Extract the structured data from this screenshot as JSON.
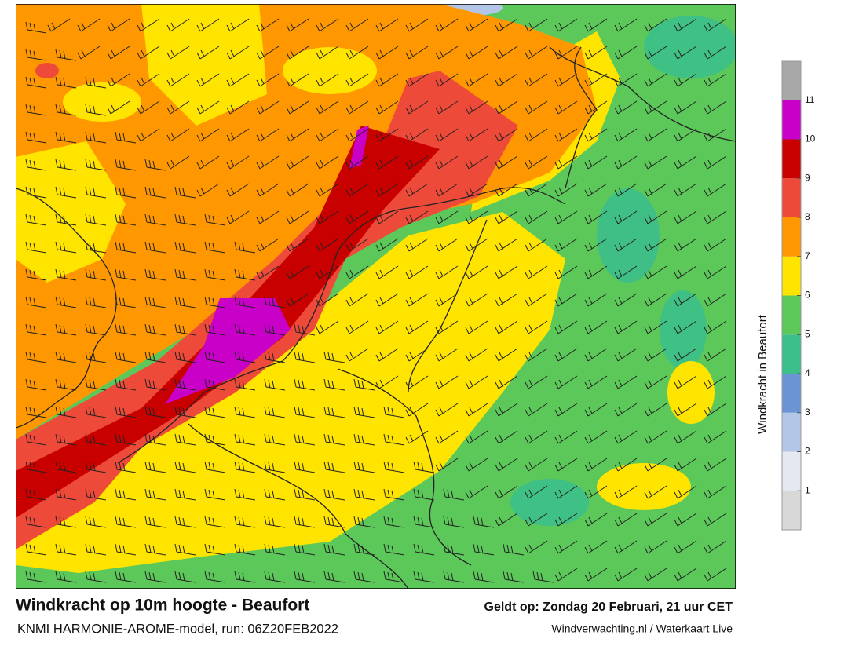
{
  "header": {
    "title": "Windkracht op 10m hoogte - Beaufort",
    "subtitle": "KNMI HARMONIE-AROME-model, run: 06Z20FEB2022",
    "valid": "Geldt op: Zondag 20 Februari, 21 uur CET",
    "source": "Windverwachting.nl / Waterkaart Live"
  },
  "legend": {
    "title": "Windkracht in Beaufort",
    "lim": [
      0,
      12
    ],
    "ticks": [
      1,
      2,
      3,
      4,
      5,
      6,
      7,
      8,
      9,
      10,
      11
    ],
    "colors": [
      "#d8d8d8",
      "#e4e8f0",
      "#b4c6e8",
      "#6a94d4",
      "#3cbf8a",
      "#5cc85a",
      "#ffe400",
      "#ff9800",
      "#ee4a3a",
      "#c80000",
      "#c800c8",
      "#a8a8a8"
    ]
  }
}
